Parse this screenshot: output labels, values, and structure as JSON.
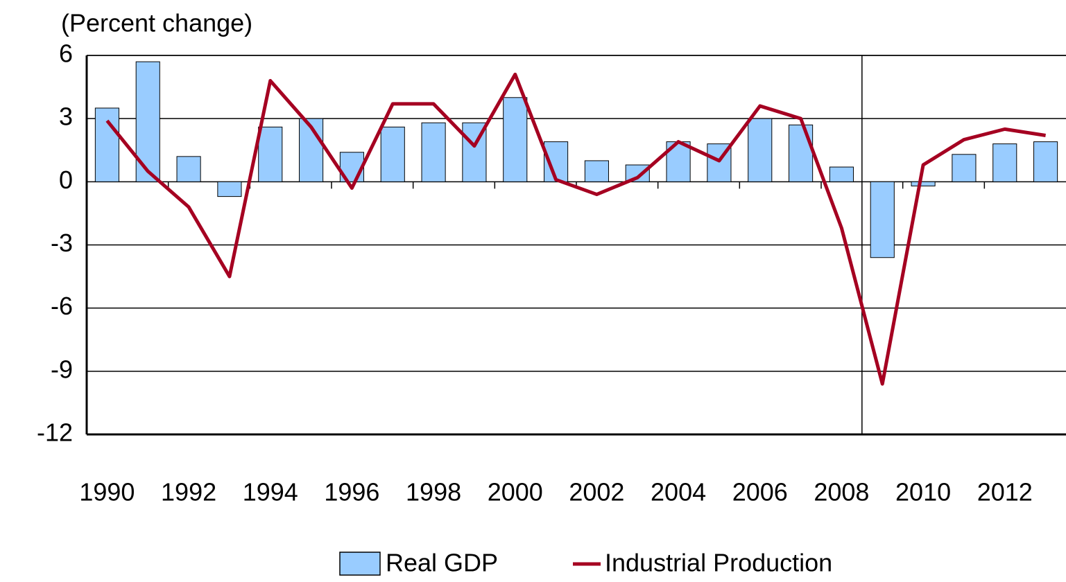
{
  "chart_data": {
    "type": "bar",
    "y_label": "(Percent change)",
    "categories": [
      1990,
      null,
      1992,
      null,
      1994,
      null,
      1996,
      null,
      1998,
      null,
      2000,
      null,
      2002,
      null,
      2004,
      null,
      2006,
      null,
      2008,
      null,
      2010,
      null,
      2012,
      null
    ],
    "series": [
      {
        "name": "Real GDP",
        "type": "bar",
        "color": "#99ccff",
        "values": [
          3.5,
          5.7,
          1.2,
          -0.7,
          2.6,
          3.0,
          1.4,
          2.6,
          2.8,
          2.8,
          4.0,
          1.9,
          1.0,
          0.8,
          1.9,
          1.8,
          3.0,
          2.7,
          0.7,
          -3.6,
          -0.2,
          1.3,
          1.8,
          1.9
        ]
      },
      {
        "name": "Industrial Production",
        "type": "line",
        "color": "#a50021",
        "values": [
          2.9,
          0.5,
          -1.2,
          -4.5,
          4.8,
          2.6,
          -0.3,
          3.7,
          3.7,
          1.7,
          5.1,
          0.1,
          -0.6,
          0.2,
          1.9,
          1.0,
          3.6,
          3.0,
          -2.2,
          -9.6,
          0.8,
          2.0,
          2.5,
          2.2
        ]
      }
    ],
    "ylim": [
      -12,
      6
    ],
    "yticks": [
      -12,
      -9,
      -6,
      -3,
      0,
      3,
      6
    ],
    "grid": true,
    "legend": "bottom"
  }
}
